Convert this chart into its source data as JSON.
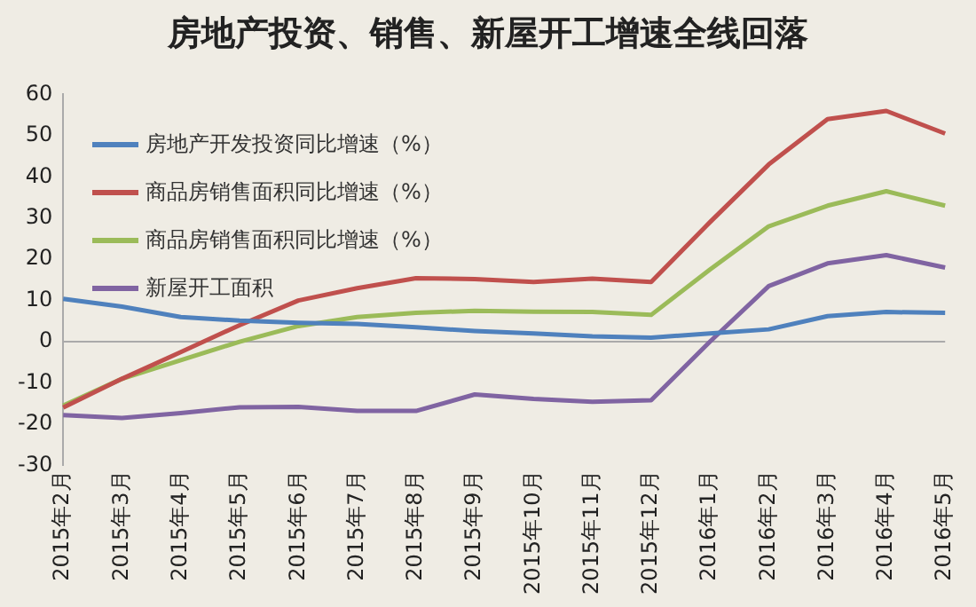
{
  "chart_data": {
    "type": "line",
    "title": "房地产投资、销售、新屋开工增速全线回落",
    "categories": [
      "2015年2月",
      "2015年3月",
      "2015年4月",
      "2015年5月",
      "2015年6月",
      "2015年7月",
      "2015年8月",
      "2015年9月",
      "2015年10月",
      "2015年11月",
      "2015年12月",
      "2016年1月",
      "2016年2月",
      "2016年3月",
      "2016年4月",
      "2016年5月"
    ],
    "series": [
      {
        "name": "房地产开发投资同比增速（%）",
        "color": "#4f81bd",
        "values": [
          10.4,
          8.5,
          6.0,
          5.1,
          4.6,
          4.3,
          3.5,
          2.6,
          2.0,
          1.3,
          1.0,
          2.0,
          3.0,
          6.2,
          7.2,
          7.0
        ]
      },
      {
        "name": "商品房销售面积同比增速（%）",
        "color": "#c0504d",
        "values": [
          -16,
          -9,
          -2.5,
          4,
          10,
          13,
          15.4,
          15.2,
          14.5,
          15.3,
          14.5,
          29,
          43,
          54,
          56,
          50.5
        ]
      },
      {
        "name": "商品房销售面积同比增速（%）",
        "color": "#9bbb59",
        "values": [
          -15.5,
          -9,
          -4.5,
          0,
          3.8,
          6,
          7,
          7.5,
          7.3,
          7.2,
          6.5,
          17.5,
          28,
          33,
          36.5,
          33
        ]
      },
      {
        "name": "新屋开工面积",
        "color": "#8064a2",
        "values": [
          -17.8,
          -18.5,
          -17.3,
          -15.9,
          -15.8,
          -16.8,
          -16.8,
          -12.8,
          -13.9,
          -14.6,
          -14.2,
          0,
          13.5,
          19,
          21,
          18
        ]
      }
    ],
    "ylim": [
      -30,
      60
    ],
    "yticks": [
      -30,
      -20,
      -10,
      0,
      10,
      20,
      30,
      40,
      50,
      60
    ],
    "ref_lines": [
      {
        "axis": "y",
        "value": 0,
        "color": "#aaaaaa"
      }
    ],
    "grid": false,
    "legend": "top left",
    "marker": "none",
    "line_style": "solid"
  }
}
